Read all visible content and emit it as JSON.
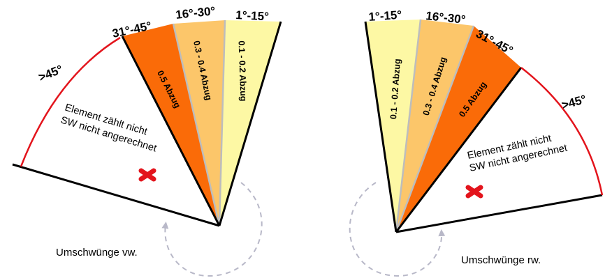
{
  "colors": {
    "zone_1_15": "#fdf8a4",
    "zone_16_30": "#fcc66a",
    "zone_31_45": "#fa6b08",
    "boundary_arc": "#e3141c",
    "separator": "#bdbdbd",
    "edge": "#000000",
    "cross_mark": "#e3141c",
    "rotation_arrow": "#b8b8c8"
  },
  "left_diagram": {
    "ranges": {
      "r1": {
        "label": "1°-15°",
        "deduction": "0.1 - 0.2 Abzug"
      },
      "r2": {
        "label": "16°-30°",
        "deduction": "0.3 - 0.4 Abzug"
      },
      "r3": {
        "label": "31°-45°",
        "deduction": "0.5 Abzug"
      },
      "r4": {
        "label": ">45°"
      }
    },
    "note_line1": "Element zählt nicht",
    "note_line2": "SW nicht angerechnet",
    "caption": "Umschwünge vw.",
    "invalid_icon": "red-cross-icon",
    "rotation_icon": "dashed-rotation-arrow-icon"
  },
  "right_diagram": {
    "ranges": {
      "r1": {
        "label": "1°-15°",
        "deduction": "0.1 - 0.2 Abzug"
      },
      "r2": {
        "label": "16°-30°",
        "deduction": "0.3 - 0.4 Abzug"
      },
      "r3": {
        "label": "31°-45°",
        "deduction": "0.5 Abzug"
      },
      "r4": {
        "label": ">45°"
      }
    },
    "note_line1": "Element zählt nicht",
    "note_line2": "SW nicht angerechnet",
    "caption": "Umschwünge rw.",
    "invalid_icon": "red-cross-icon",
    "rotation_icon": "dashed-rotation-arrow-icon"
  }
}
